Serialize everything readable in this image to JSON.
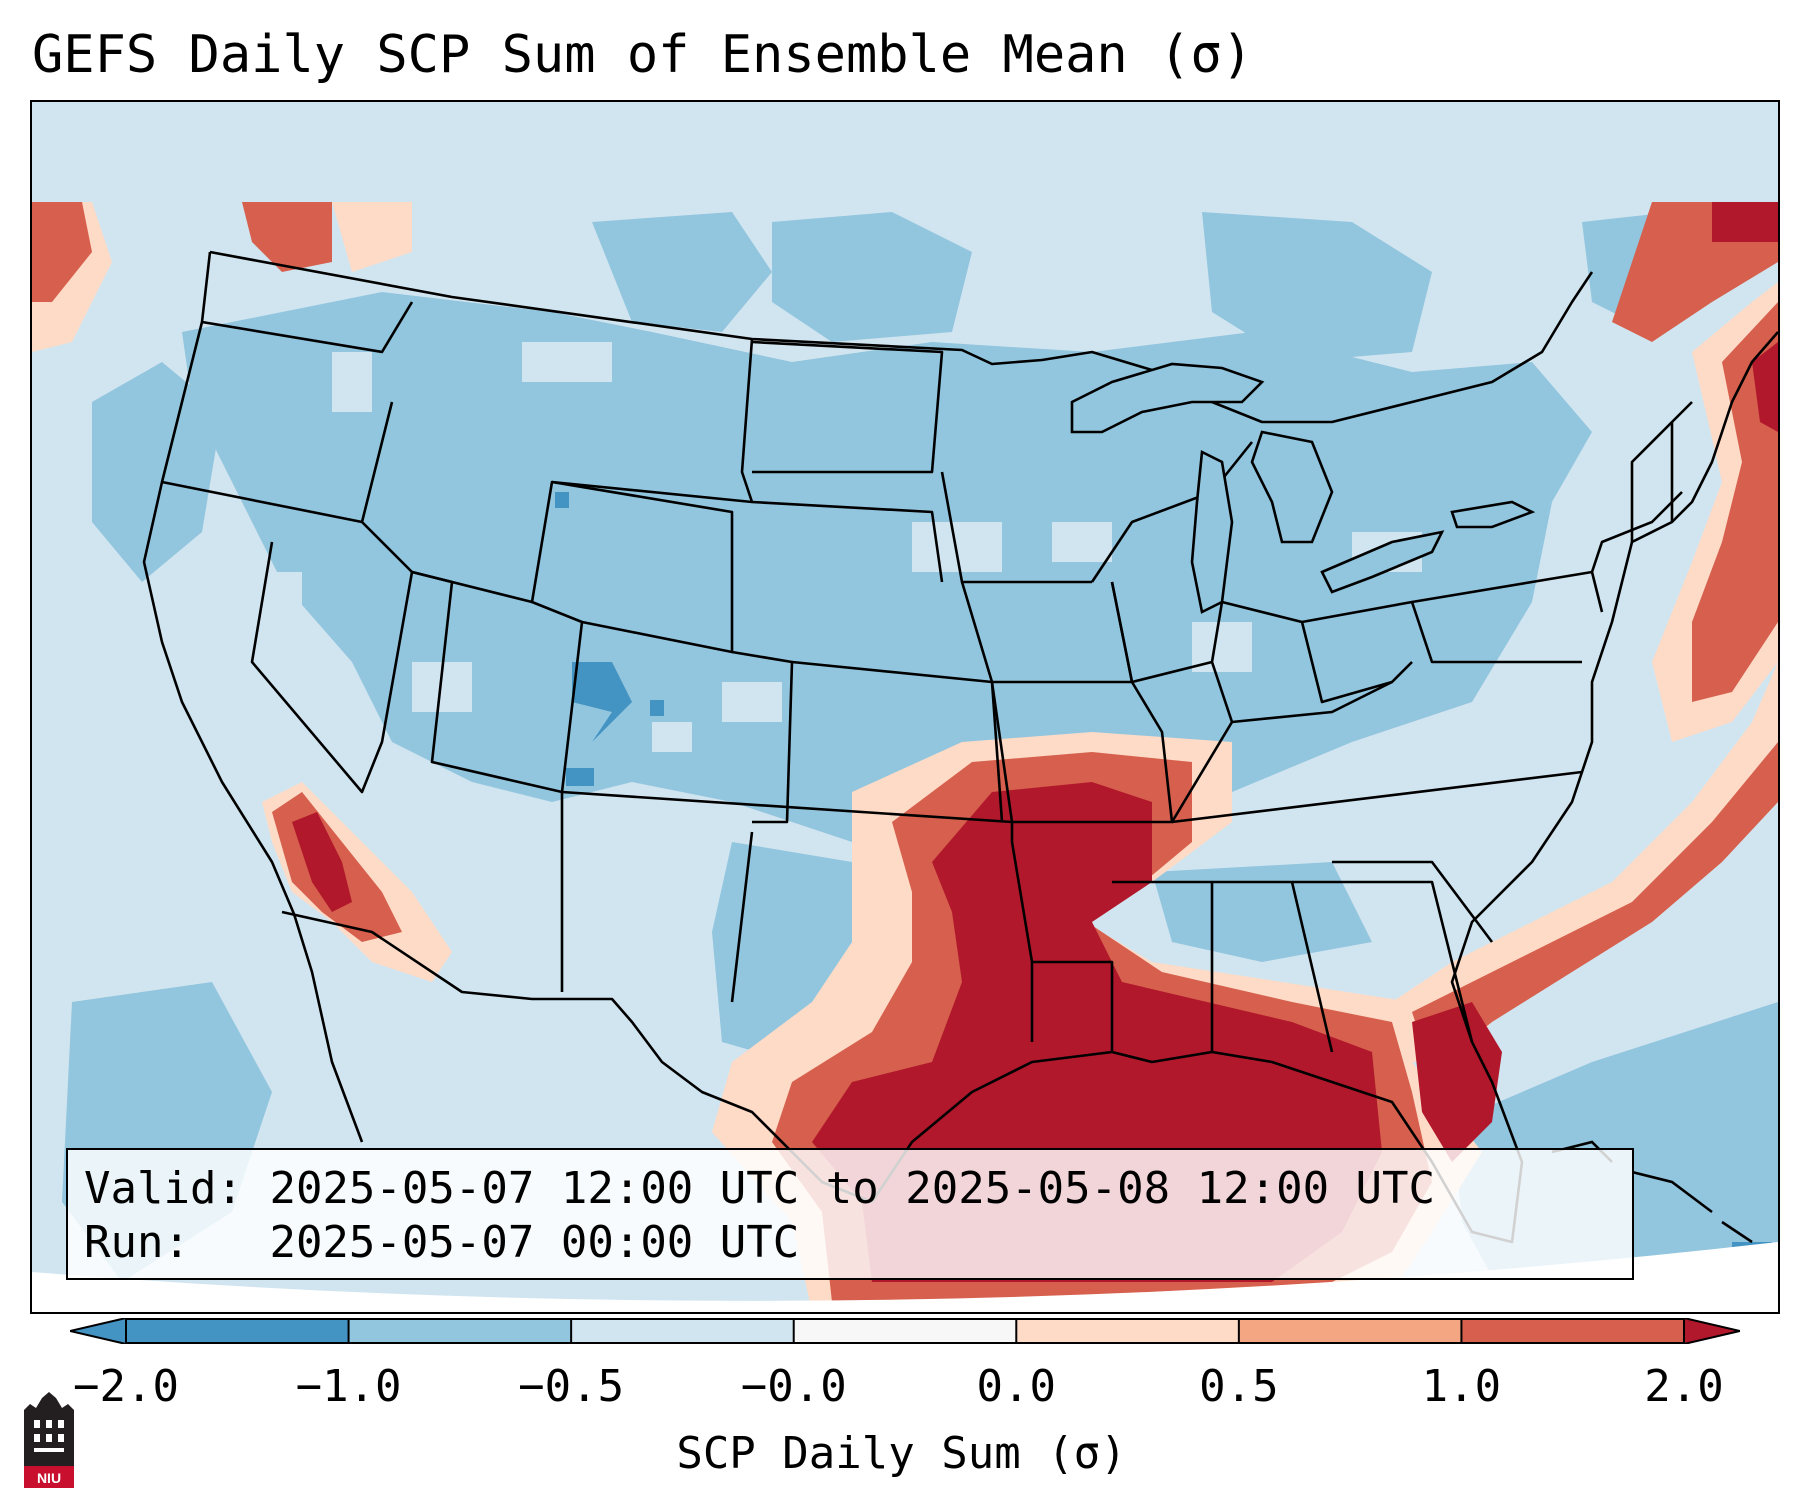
{
  "title": "GEFS Daily SCP Sum of Ensemble Mean (σ)",
  "info": {
    "valid_label": "Valid:",
    "valid_value": "2025-05-07 12:00 UTC to 2025-05-08 12:00 UTC",
    "run_label": "Run:",
    "run_value": "2025-05-07 00:00 UTC"
  },
  "colorbar": {
    "label": "SCP Daily Sum (σ)",
    "ticks": [
      "−2.0",
      "−1.0",
      "−0.5",
      "−0.0",
      "0.0",
      "0.5",
      "1.0",
      "2.0"
    ],
    "colors": [
      "#4393c3",
      "#92c5de",
      "#d1e5f0",
      "#f7f7f7",
      "#fddbc7",
      "#f4a582",
      "#d6604d",
      "#b2182b"
    ],
    "extend": "both"
  },
  "map": {
    "region": "Continental United States",
    "background_color": "#d1e5f0",
    "negative_color": "#92c5de",
    "strong_negative_color": "#4393c3",
    "weak_positive_color": "#fddbc7",
    "moderate_positive_color": "#d6604d",
    "strong_positive_color": "#b2182b",
    "border_color": "#000000"
  },
  "logo": {
    "text": "NIU",
    "icon": "university-logo-icon"
  }
}
